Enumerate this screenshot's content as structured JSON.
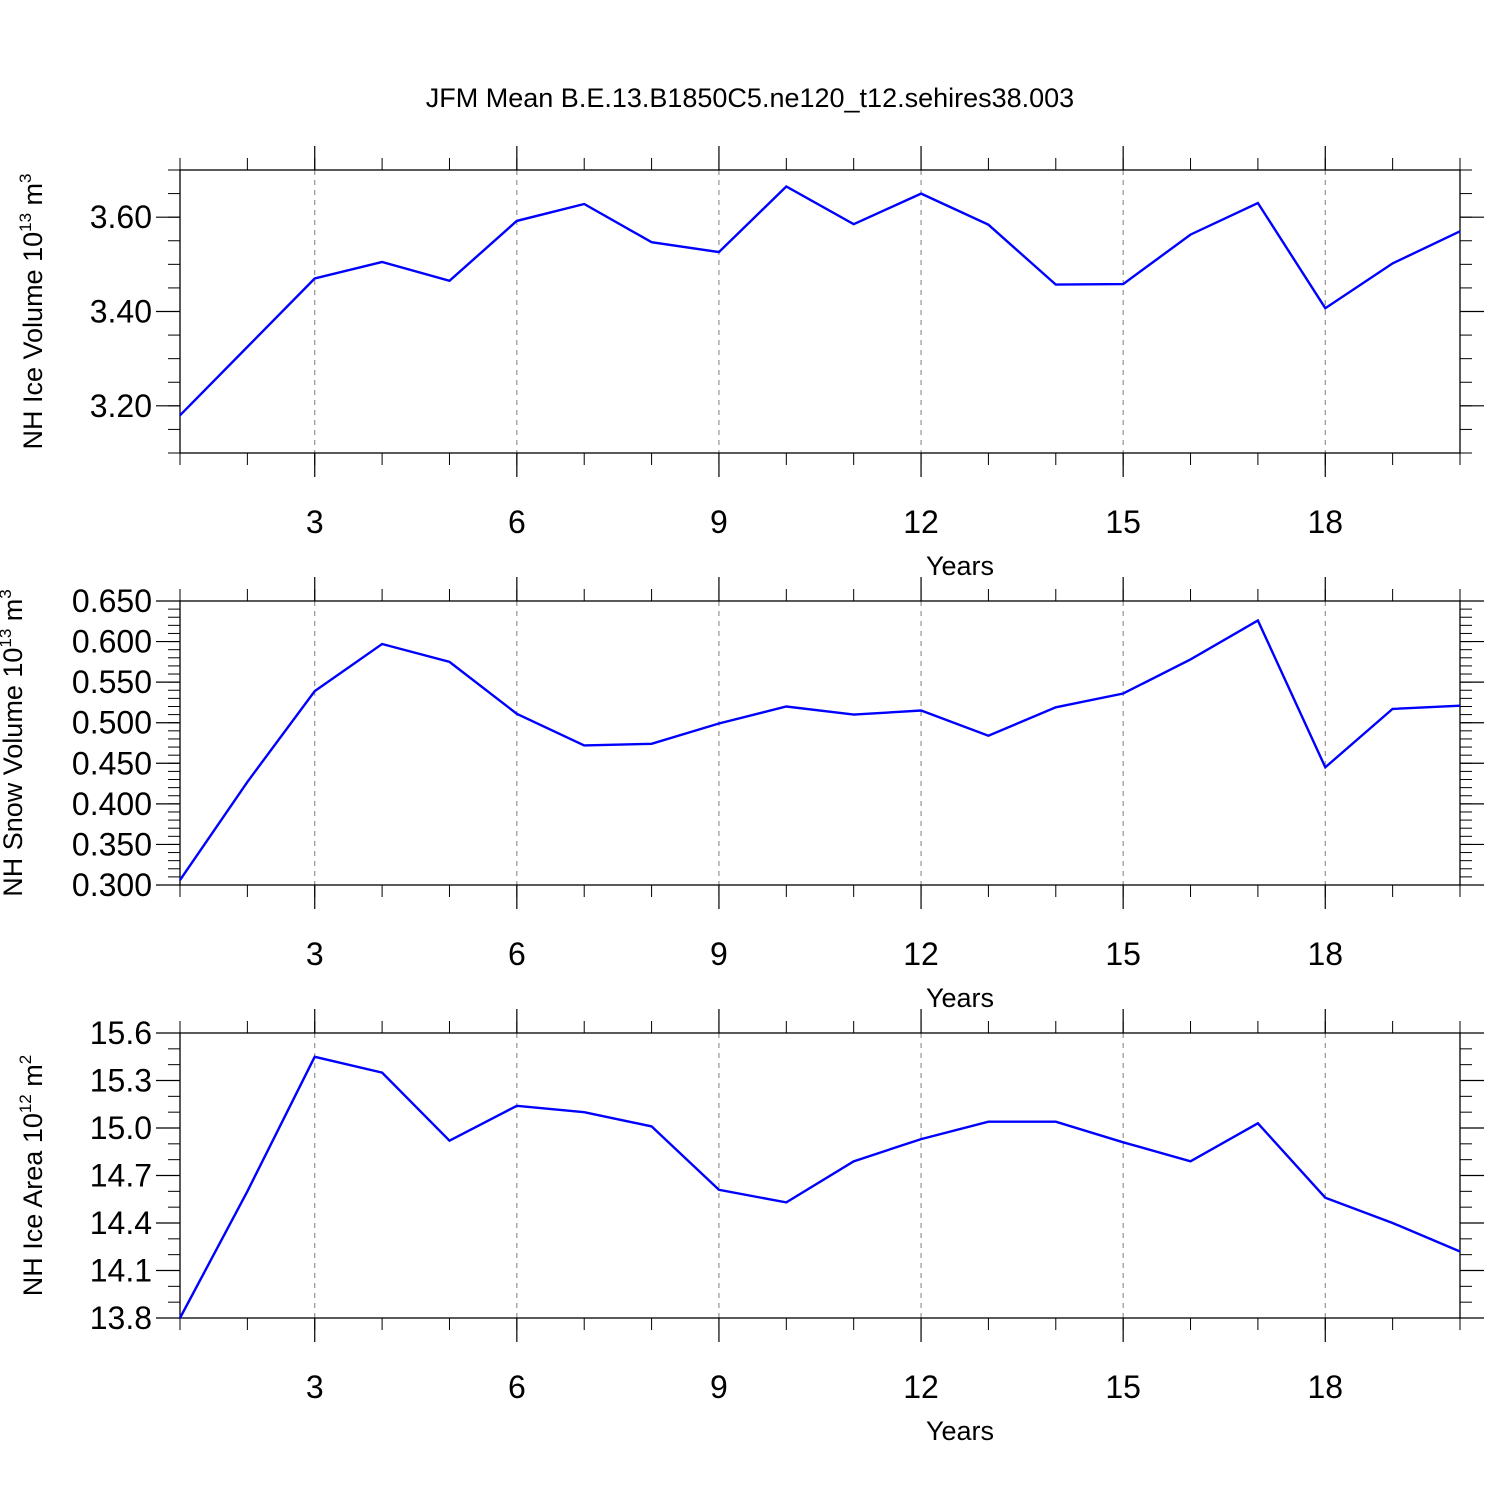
{
  "title": "JFM Mean B.E.13.B1850C5.ne120_t12.sehires38.003",
  "colors": {
    "line": "#0000ff",
    "axis": "#000000",
    "grid": "#7f7f7f"
  },
  "chart_data": [
    {
      "type": "line",
      "xlabel": "Years",
      "ylabel": {
        "main": "NH Ice Volume 10",
        "exp": "13",
        "unit": " m",
        "unit_exp": "3"
      },
      "x": [
        1,
        2,
        3,
        4,
        5,
        6,
        7,
        8,
        9,
        10,
        11,
        12,
        13,
        14,
        15,
        16,
        17,
        18,
        19,
        20
      ],
      "series": [
        {
          "values": [
            3.18,
            3.325,
            3.47,
            3.505,
            3.465,
            3.592,
            3.628,
            3.547,
            3.526,
            3.665,
            3.585,
            3.65,
            3.584,
            3.457,
            3.458,
            3.563,
            3.63,
            3.407,
            3.502,
            3.57
          ]
        }
      ],
      "xlim": [
        1,
        20
      ],
      "ylim": [
        3.1,
        3.7
      ],
      "xticks": [
        3,
        6,
        9,
        12,
        15,
        18
      ],
      "xtick_labels": [
        "3",
        "6",
        "9",
        "12",
        "15",
        "18"
      ],
      "yticks": [
        3.2,
        3.4,
        3.6
      ],
      "ytick_labels": [
        "3.20",
        "3.40",
        "3.60"
      ],
      "yminor_step": 0.05,
      "grid": "vertical dashed at major x ticks"
    },
    {
      "type": "line",
      "xlabel": "Years",
      "ylabel": {
        "main": "NH Snow Volume 10",
        "exp": "13",
        "unit": " m",
        "unit_exp": "3"
      },
      "x": [
        1,
        2,
        3,
        4,
        5,
        6,
        7,
        8,
        9,
        10,
        11,
        12,
        13,
        14,
        15,
        16,
        17,
        18,
        19,
        20
      ],
      "series": [
        {
          "values": [
            0.306,
            0.427,
            0.539,
            0.597,
            0.575,
            0.511,
            0.472,
            0.474,
            0.499,
            0.52,
            0.51,
            0.515,
            0.484,
            0.519,
            0.536,
            0.578,
            0.626,
            0.445,
            0.517,
            0.521
          ]
        }
      ],
      "xlim": [
        1,
        20
      ],
      "ylim": [
        0.3,
        0.65
      ],
      "xticks": [
        3,
        6,
        9,
        12,
        15,
        18
      ],
      "xtick_labels": [
        "3",
        "6",
        "9",
        "12",
        "15",
        "18"
      ],
      "yticks": [
        0.3,
        0.35,
        0.4,
        0.45,
        0.5,
        0.55,
        0.6,
        0.65
      ],
      "ytick_labels": [
        "0.300",
        "0.350",
        "0.400",
        "0.450",
        "0.500",
        "0.550",
        "0.600",
        "0.650"
      ],
      "yminor_step": 0.01,
      "grid": "vertical dashed at major x ticks"
    },
    {
      "type": "line",
      "xlabel": "Years",
      "ylabel": {
        "main": "NH Ice Area 10",
        "exp": "12",
        "unit": " m",
        "unit_exp": "2"
      },
      "x": [
        1,
        2,
        3,
        4,
        5,
        6,
        7,
        8,
        9,
        10,
        11,
        12,
        13,
        14,
        15,
        16,
        17,
        18,
        19,
        20
      ],
      "series": [
        {
          "values": [
            13.8,
            14.6,
            15.45,
            15.35,
            14.92,
            15.14,
            15.1,
            15.01,
            14.61,
            14.53,
            14.79,
            14.93,
            15.04,
            15.04,
            14.91,
            14.79,
            15.03,
            14.56,
            14.4,
            14.22
          ]
        }
      ],
      "xlim": [
        1,
        20
      ],
      "ylim": [
        13.8,
        15.6
      ],
      "xticks": [
        3,
        6,
        9,
        12,
        15,
        18
      ],
      "xtick_labels": [
        "3",
        "6",
        "9",
        "12",
        "15",
        "18"
      ],
      "yticks": [
        13.8,
        14.1,
        14.4,
        14.7,
        15.0,
        15.3,
        15.6
      ],
      "ytick_labels": [
        "13.8",
        "14.1",
        "14.4",
        "14.7",
        "15.0",
        "15.3",
        "15.6"
      ],
      "yminor_step": 0.1,
      "grid": "vertical dashed at major x ticks"
    }
  ]
}
